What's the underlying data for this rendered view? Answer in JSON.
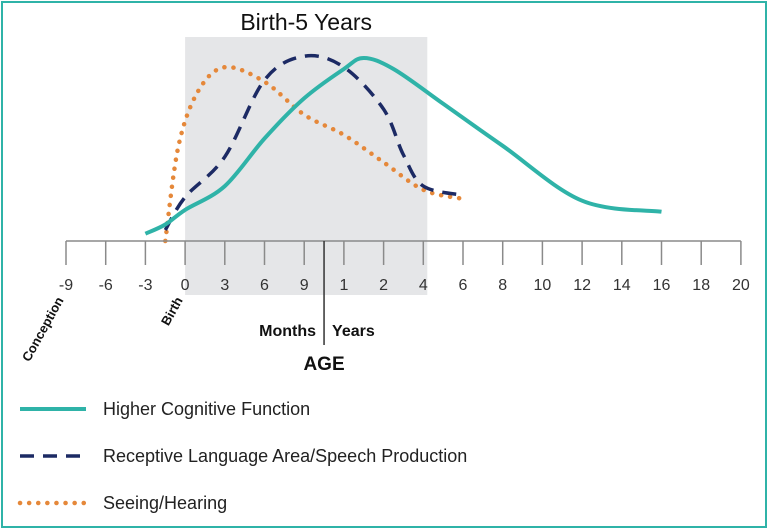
{
  "chart_data": {
    "type": "line",
    "title": "Birth-5 Years",
    "xlabel": "AGE",
    "x_unit_labels": {
      "months": "Months",
      "years": "Years"
    },
    "tick_labels": [
      "-9",
      "-6",
      "-3",
      "0",
      "3",
      "6",
      "9",
      "1",
      "2",
      "4",
      "6",
      "8",
      "10",
      "12",
      "14",
      "16",
      "18",
      "20"
    ],
    "annotations": [
      {
        "text": "Conception",
        "at_tick": "-9"
      },
      {
        "text": "Birth",
        "at_tick": "0"
      }
    ],
    "highlight_band": {
      "label": "Birth-5 Years",
      "from_tick": "0",
      "to_tick": "4",
      "color": "#e5e6e8"
    },
    "y_axis": "relative development (unlabeled)",
    "series": [
      {
        "name": "Higher Cognitive Function",
        "style": "solid",
        "color": "#2fb3a8",
        "points": [
          {
            "age": "-3 months",
            "value": 4
          },
          {
            "age": "-1.5 months",
            "value": 9
          },
          {
            "age": "0 months",
            "value": 17
          },
          {
            "age": "3 months",
            "value": 30
          },
          {
            "age": "6 months",
            "value": 56
          },
          {
            "age": "9 months",
            "value": 78
          },
          {
            "age": "1 year",
            "value": 94
          },
          {
            "age": "1.5 years",
            "value": 100
          },
          {
            "age": "2.5 years",
            "value": 94
          },
          {
            "age": "5 years",
            "value": 75
          },
          {
            "age": "8 years",
            "value": 52
          },
          {
            "age": "12 years",
            "value": 22
          },
          {
            "age": "16 years",
            "value": 16
          }
        ]
      },
      {
        "name": "Receptive Language Area/Speech Production",
        "style": "dashed",
        "color": "#1c2a64",
        "points": [
          {
            "age": "-1.5 months",
            "value": 6
          },
          {
            "age": "0 months",
            "value": 24
          },
          {
            "age": "3 months",
            "value": 46
          },
          {
            "age": "6 months",
            "value": 88
          },
          {
            "age": "9 months",
            "value": 101
          },
          {
            "age": "1 year",
            "value": 95
          },
          {
            "age": "2 years",
            "value": 72
          },
          {
            "age": "3 years",
            "value": 47
          },
          {
            "age": "4 years",
            "value": 30
          },
          {
            "age": "6 years",
            "value": 25
          }
        ]
      },
      {
        "name": "Seeing/Hearing",
        "style": "dotted",
        "color": "#e5883a",
        "points": [
          {
            "age": "-1.5 months",
            "value": 0
          },
          {
            "age": "-0.5 months",
            "value": 52
          },
          {
            "age": "1 month",
            "value": 82
          },
          {
            "age": "3 months",
            "value": 95
          },
          {
            "age": "6 months",
            "value": 87
          },
          {
            "age": "9 months",
            "value": 69
          },
          {
            "age": "1 year",
            "value": 58
          },
          {
            "age": "2 years",
            "value": 43
          },
          {
            "age": "4 years",
            "value": 28
          },
          {
            "age": "6 years",
            "value": 23
          }
        ]
      }
    ],
    "legend": {
      "position": "bottom-left",
      "entries": [
        {
          "label": "Higher Cognitive Function",
          "style": "solid",
          "color": "#2fb3a8"
        },
        {
          "label": "Receptive Language Area/Speech Production",
          "style": "dashed",
          "color": "#1c2a64"
        },
        {
          "label": "Seeing/Hearing",
          "style": "dotted",
          "color": "#e5883a"
        }
      ]
    },
    "colors": {
      "border": "#2fb3a8",
      "axis": "#8a8a8a",
      "band": "#e5e6e8"
    }
  }
}
